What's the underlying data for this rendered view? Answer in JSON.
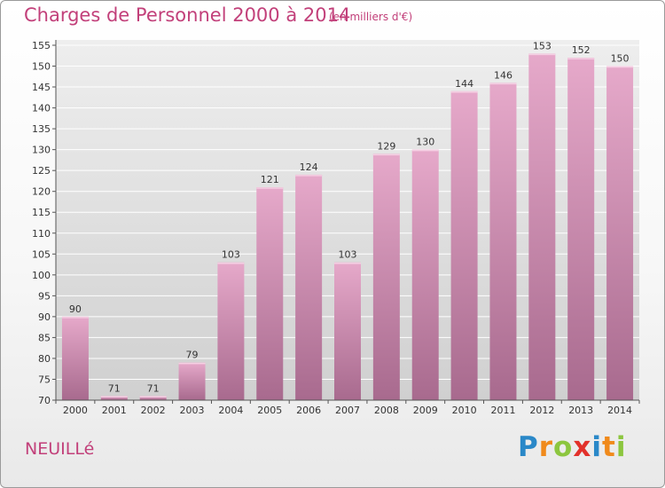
{
  "title": "Charges de Personnel 2000 à 2014",
  "unit_note": "(en milliers d'€)",
  "commune": "NEUILLé",
  "logo": {
    "letters": [
      "P",
      "r",
      "o",
      "x",
      "i",
      "t",
      "i"
    ],
    "colors": [
      "#2a88c8",
      "#f08a1c",
      "#8cc63f",
      "#e2312b",
      "#2a88c8",
      "#f08a1c",
      "#8cc63f"
    ]
  },
  "colors": {
    "bar": "#d98ab4",
    "text": "#c2407a",
    "grid": "#ffffff",
    "plot_bg": "#dcdcdc"
  },
  "chart_data": {
    "type": "bar",
    "title": "Charges de Personnel 2000 à 2014",
    "ylabel": "",
    "xlabel": "",
    "ylim": [
      70,
      155
    ],
    "yticks": [
      70,
      75,
      80,
      85,
      90,
      95,
      100,
      105,
      110,
      115,
      120,
      125,
      130,
      135,
      140,
      145,
      150,
      155
    ],
    "categories": [
      "2000",
      "2001",
      "2002",
      "2003",
      "2004",
      "2005",
      "2006",
      "2007",
      "2008",
      "2009",
      "2010",
      "2011",
      "2012",
      "2013",
      "2014"
    ],
    "values": [
      90,
      71,
      71,
      79,
      103,
      121,
      124,
      103,
      129,
      130,
      144,
      146,
      153,
      152,
      150
    ],
    "grid": true
  }
}
